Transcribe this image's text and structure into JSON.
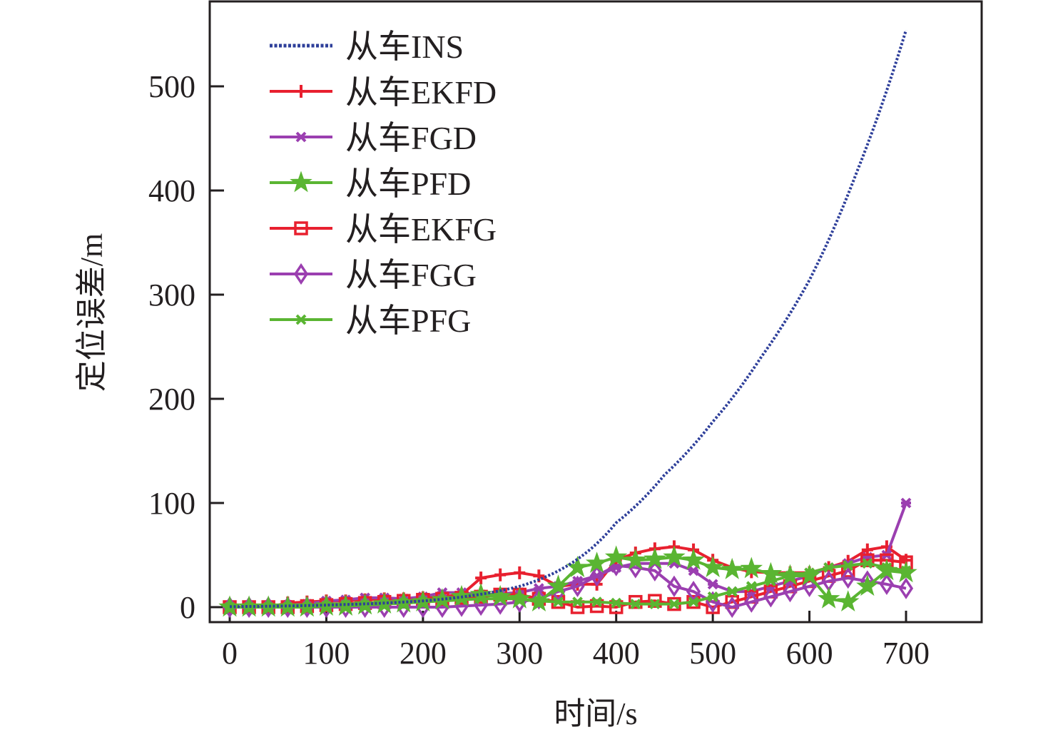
{
  "chart_data": {
    "type": "line",
    "title": "",
    "xlabel": "时间/s",
    "ylabel": "定位误差/m",
    "xlim": [
      -15,
      780
    ],
    "ylim": [
      -15,
      580
    ],
    "xticks": [
      0,
      100,
      200,
      300,
      400,
      500,
      600,
      700
    ],
    "yticks": [
      0,
      100,
      200,
      300,
      400,
      500
    ],
    "grid": false,
    "legend_position": "top-left",
    "series": [
      {
        "name": "从车INS",
        "color": "#2e3f9a",
        "marker": "none",
        "style": "dotted",
        "x": [
          0,
          50,
          100,
          150,
          200,
          250,
          300,
          350,
          400,
          450,
          500,
          550,
          600,
          650,
          700
        ],
        "values": [
          0,
          1,
          2,
          3.5,
          6,
          11,
          20,
          40,
          81,
          127,
          178,
          240,
          314,
          420,
          554
        ]
      },
      {
        "name": "从车EKFD",
        "color": "#e8202f",
        "marker": "plus",
        "style": "solid",
        "x": [
          0,
          20,
          40,
          60,
          80,
          100,
          120,
          140,
          160,
          180,
          200,
          220,
          240,
          260,
          280,
          300,
          320,
          340,
          360,
          380,
          400,
          420,
          440,
          460,
          480,
          500,
          520,
          540,
          560,
          580,
          600,
          620,
          640,
          660,
          680,
          700
        ],
        "values": [
          0,
          0,
          0,
          4,
          5,
          6,
          6,
          7,
          8,
          8,
          9,
          10,
          12,
          28,
          31,
          33,
          30,
          20,
          22,
          22,
          45,
          52,
          56,
          58,
          55,
          45,
          38,
          34,
          33,
          33,
          33,
          38,
          44,
          55,
          58,
          45
        ]
      },
      {
        "name": "从车FGD",
        "color": "#9b3fb0",
        "marker": "x",
        "style": "solid",
        "x": [
          0,
          20,
          40,
          60,
          80,
          100,
          120,
          140,
          160,
          180,
          200,
          220,
          240,
          260,
          280,
          300,
          320,
          340,
          360,
          380,
          400,
          420,
          440,
          460,
          480,
          500,
          520,
          540,
          560,
          580,
          600,
          620,
          640,
          660,
          680,
          700
        ],
        "values": [
          0,
          0,
          0,
          2,
          3,
          6,
          7,
          9,
          9,
          8,
          10,
          14,
          14,
          12,
          13,
          14,
          18,
          20,
          25,
          30,
          38,
          42,
          42,
          42,
          35,
          22,
          15,
          15,
          20,
          25,
          30,
          38,
          42,
          48,
          50,
          100
        ]
      },
      {
        "name": "从车PFD",
        "color": "#5ab532",
        "marker": "star",
        "style": "solid",
        "x": [
          0,
          20,
          40,
          60,
          80,
          100,
          120,
          140,
          160,
          180,
          200,
          220,
          240,
          260,
          280,
          300,
          320,
          340,
          360,
          380,
          400,
          420,
          440,
          460,
          480,
          500,
          520,
          540,
          560,
          580,
          600,
          620,
          640,
          660,
          680,
          700
        ],
        "values": [
          0,
          0,
          0,
          0,
          0,
          1,
          1,
          2,
          3,
          4,
          5,
          7,
          10,
          12,
          10,
          8,
          5,
          20,
          38,
          42,
          48,
          45,
          46,
          48,
          45,
          38,
          36,
          37,
          32,
          30,
          30,
          8,
          5,
          20,
          35,
          33
        ]
      },
      {
        "name": "从车EKFG",
        "color": "#e8202f",
        "marker": "square",
        "style": "solid",
        "x": [
          0,
          20,
          40,
          60,
          80,
          100,
          120,
          140,
          160,
          180,
          200,
          220,
          240,
          260,
          280,
          300,
          320,
          340,
          360,
          380,
          400,
          420,
          440,
          460,
          480,
          500,
          520,
          540,
          560,
          580,
          600,
          620,
          640,
          660,
          680,
          700
        ],
        "values": [
          0,
          0,
          0,
          0,
          1,
          2,
          3,
          4,
          5,
          6,
          7,
          8,
          9,
          10,
          12,
          12,
          8,
          5,
          0,
          1,
          0,
          5,
          6,
          3,
          5,
          0,
          5,
          10,
          15,
          20,
          25,
          30,
          35,
          45,
          45,
          43
        ]
      },
      {
        "name": "从车FGG",
        "color": "#9b3fb0",
        "marker": "diamond",
        "style": "solid",
        "x": [
          0,
          20,
          40,
          60,
          80,
          100,
          120,
          140,
          160,
          180,
          200,
          220,
          240,
          260,
          280,
          300,
          320,
          340,
          360,
          380,
          400,
          420,
          440,
          460,
          480,
          500,
          520,
          540,
          560,
          580,
          600,
          620,
          640,
          660,
          680,
          700
        ],
        "values": [
          0,
          0,
          0,
          0,
          0,
          0,
          0,
          0,
          0,
          0,
          0,
          0,
          1,
          2,
          3,
          5,
          8,
          15,
          20,
          30,
          40,
          38,
          35,
          20,
          15,
          5,
          0,
          5,
          10,
          15,
          20,
          25,
          28,
          25,
          22,
          18
        ]
      },
      {
        "name": "从车PFG",
        "color": "#5ab532",
        "marker": "x",
        "style": "solid",
        "x": [
          0,
          20,
          40,
          60,
          80,
          100,
          120,
          140,
          160,
          180,
          200,
          220,
          240,
          260,
          280,
          300,
          320,
          340,
          360,
          380,
          400,
          420,
          440,
          460,
          480,
          500,
          520,
          540,
          560,
          580,
          600,
          620,
          640,
          660,
          680,
          700
        ],
        "values": [
          0,
          0,
          0,
          0,
          0,
          1,
          2,
          2,
          3,
          4,
          5,
          6,
          7,
          8,
          8,
          8,
          6,
          5,
          5,
          5,
          4,
          3,
          3,
          3,
          5,
          10,
          15,
          20,
          25,
          30,
          33,
          38,
          40,
          42,
          38,
          35
        ]
      }
    ]
  }
}
